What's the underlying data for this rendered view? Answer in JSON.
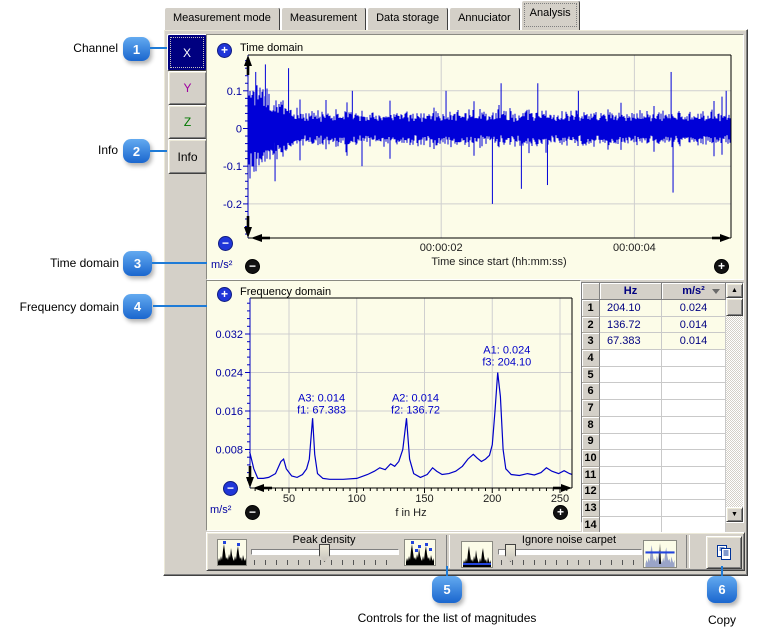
{
  "icons": {
    "plus": "+",
    "minus": "−",
    "up_arrow": "▲",
    "down_arrow": "▼"
  },
  "tabs": {
    "items": [
      {
        "label": "Measurement mode",
        "active": false
      },
      {
        "label": "Measurement",
        "active": false
      },
      {
        "label": "Data storage",
        "active": false
      },
      {
        "label": "Annuciator",
        "active": false
      },
      {
        "label": "Analysis",
        "active": true
      }
    ]
  },
  "channel": {
    "buttons": [
      {
        "label": "X",
        "selected": true,
        "color": "#FFFFFF"
      },
      {
        "label": "Y",
        "selected": false,
        "color": "#A000A0"
      },
      {
        "label": "Z",
        "selected": false,
        "color": "#007800"
      },
      {
        "label": "Info",
        "selected": false,
        "color": "#000000"
      }
    ]
  },
  "table": {
    "headers": [
      "Hz",
      "m/s²"
    ],
    "row_count": 14,
    "rows": [
      [
        "204.10",
        "0.024"
      ],
      [
        "136.72",
        "0.014"
      ],
      [
        "67.383",
        "0.014"
      ]
    ]
  },
  "controls": {
    "peak_density": {
      "label": "Peak density"
    },
    "ignore_noise": {
      "label": "Ignore noise carpet"
    }
  },
  "callouts": [
    {
      "number": "1",
      "label": "Channel"
    },
    {
      "number": "2",
      "label": "Info"
    },
    {
      "number": "3",
      "label": "Time domain"
    },
    {
      "number": "4",
      "label": "Frequency domain"
    },
    {
      "number": "5",
      "label": "Controls for the list of magnitudes"
    },
    {
      "number": "6",
      "label": "Copy"
    }
  ],
  "colors": {
    "badge_blue": "#1E7BD7",
    "selected_channel_bg": "#000080",
    "waveform_blue": "#0000D8",
    "chart_bg": "#FCFCE8",
    "tick_label_blue": "#0000A0",
    "panel_gray": "#D4D0C8"
  },
  "chart_data": [
    {
      "id": "time_domain",
      "type": "line",
      "title": "Time domain",
      "xlabel": "Time since start (hh:mm:ss)",
      "ylabel": "m/s²",
      "x_ticks": [
        {
          "t_s": 2,
          "label": "00:00:02"
        },
        {
          "t_s": 4,
          "label": "00:00:04"
        }
      ],
      "y_ticks": [
        {
          "v": 0.1,
          "label": "0.1"
        },
        {
          "v": 0,
          "label": "0"
        },
        {
          "v": -0.1,
          "label": "-0.1"
        },
        {
          "v": -0.2,
          "label": "-0.2"
        }
      ],
      "xlim_s": [
        0,
        5.0
      ],
      "ylim": [
        -0.29,
        0.2
      ],
      "grid": true,
      "signal": {
        "kind": "broadband-noise",
        "seed": 20,
        "base_amplitude": 0.042,
        "initial_burst": {
          "until_s": 0.5,
          "extra_amplitude": 0.12
        },
        "spikes": [
          {
            "t_s": 0.08,
            "amp": 0.15
          },
          {
            "t_s": 0.18,
            "amp": 0.17
          },
          {
            "t_s": 0.28,
            "amp": -0.14
          },
          {
            "t_s": 0.42,
            "amp": 0.16
          },
          {
            "t_s": 1.08,
            "amp": 0.1
          },
          {
            "t_s": 1.18,
            "amp": -0.1
          },
          {
            "t_s": 2.05,
            "amp": 0.1
          },
          {
            "t_s": 2.53,
            "amp": -0.2
          },
          {
            "t_s": 2.62,
            "amp": 0.12
          },
          {
            "t_s": 2.83,
            "amp": -0.16
          },
          {
            "t_s": 3.0,
            "amp": 0.12
          },
          {
            "t_s": 3.1,
            "amp": -0.15
          },
          {
            "t_s": 3.42,
            "amp": 0.1
          },
          {
            "t_s": 4.38,
            "amp": 0.15
          },
          {
            "t_s": 4.4,
            "amp": -0.17
          },
          {
            "t_s": 4.95,
            "amp": 0.1
          }
        ]
      }
    },
    {
      "id": "frequency_domain",
      "type": "line",
      "title": "Frequency domain",
      "xlabel": "f in Hz",
      "ylabel": "m/s²",
      "x_ticks": [
        {
          "f": 50,
          "label": "50"
        },
        {
          "f": 100,
          "label": "100"
        },
        {
          "f": 150,
          "label": "150"
        },
        {
          "f": 200,
          "label": "200"
        },
        {
          "f": 250,
          "label": "250"
        }
      ],
      "y_ticks": [
        {
          "v": 0.032,
          "label": "0.032"
        },
        {
          "v": 0.024,
          "label": "0.024"
        },
        {
          "v": 0.016,
          "label": "0.016"
        },
        {
          "v": 0.008,
          "label": "0.008"
        }
      ],
      "xlim_hz": [
        21,
        259
      ],
      "ylim": [
        0,
        0.0395
      ],
      "grid": true,
      "points": [
        [
          21,
          0.0075
        ],
        [
          24,
          0.004
        ],
        [
          27,
          0.002
        ],
        [
          31,
          0.002
        ],
        [
          35,
          0.0022
        ],
        [
          40,
          0.003
        ],
        [
          44,
          0.0055
        ],
        [
          46,
          0.006
        ],
        [
          48,
          0.004
        ],
        [
          52,
          0.0025
        ],
        [
          56,
          0.0022
        ],
        [
          60,
          0.0028
        ],
        [
          63,
          0.004
        ],
        [
          65,
          0.006
        ],
        [
          67.4,
          0.0145
        ],
        [
          69,
          0.007
        ],
        [
          71,
          0.003
        ],
        [
          75,
          0.002
        ],
        [
          80,
          0.0018
        ],
        [
          90,
          0.0018
        ],
        [
          100,
          0.002
        ],
        [
          108,
          0.0028
        ],
        [
          113,
          0.0035
        ],
        [
          117,
          0.0042
        ],
        [
          121,
          0.0038
        ],
        [
          125,
          0.005
        ],
        [
          128,
          0.0045
        ],
        [
          131,
          0.0055
        ],
        [
          134,
          0.008
        ],
        [
          136.7,
          0.0145
        ],
        [
          139,
          0.006
        ],
        [
          142,
          0.003
        ],
        [
          147,
          0.0022
        ],
        [
          152,
          0.0028
        ],
        [
          156,
          0.0042
        ],
        [
          159,
          0.0035
        ],
        [
          163,
          0.0028
        ],
        [
          168,
          0.003
        ],
        [
          173,
          0.0035
        ],
        [
          178,
          0.0045
        ],
        [
          182,
          0.006
        ],
        [
          186,
          0.007
        ],
        [
          189,
          0.0062
        ],
        [
          192,
          0.0055
        ],
        [
          195,
          0.006
        ],
        [
          198,
          0.0068
        ],
        [
          200,
          0.009
        ],
        [
          202,
          0.016
        ],
        [
          204,
          0.024
        ],
        [
          206,
          0.019
        ],
        [
          208,
          0.008
        ],
        [
          210,
          0.004
        ],
        [
          214,
          0.0028
        ],
        [
          220,
          0.0026
        ],
        [
          226,
          0.003
        ],
        [
          231,
          0.0027
        ],
        [
          236,
          0.0032
        ],
        [
          240,
          0.0042
        ],
        [
          244,
          0.0035
        ],
        [
          249,
          0.003
        ],
        [
          253,
          0.0036
        ],
        [
          257,
          0.003
        ],
        [
          259,
          0.0028
        ]
      ],
      "peaks": [
        {
          "amp_label": "A1: 0.024",
          "freq_label": "f3: 204.10",
          "f": 204.1,
          "amp": 0.024
        },
        {
          "amp_label": "A2: 0.014",
          "freq_label": "f2: 136.72",
          "f": 136.72,
          "amp": 0.014
        },
        {
          "amp_label": "A3: 0.014",
          "freq_label": "f1: 67.383",
          "f": 67.383,
          "amp": 0.014
        }
      ]
    }
  ]
}
